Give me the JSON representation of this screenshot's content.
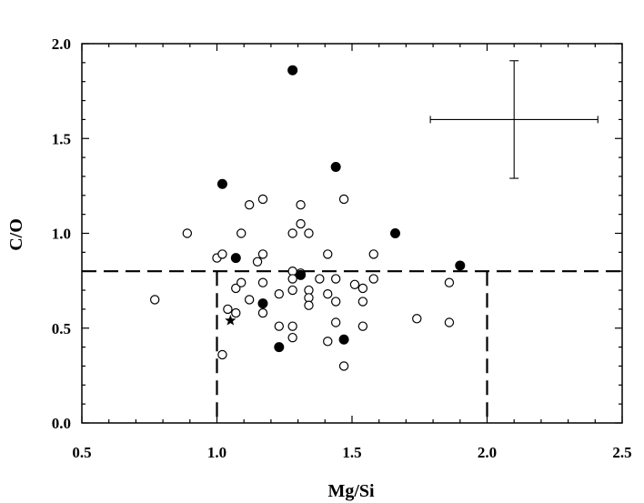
{
  "chart_data": {
    "type": "scatter",
    "title": "",
    "xlabel": "Mg/Si",
    "ylabel": "C/O",
    "xlim": [
      0.5,
      2.5
    ],
    "ylim": [
      0.0,
      2.0
    ],
    "x_ticks": [
      "0.5",
      "1.0",
      "1.5",
      "2.0",
      "2.5"
    ],
    "y_ticks": [
      "0.0",
      "0.5",
      "1.0",
      "1.5",
      "2.0"
    ],
    "grid": false,
    "colors": {
      "ink": "#000000",
      "open_fill": "#ffffff",
      "filled": "#000000"
    },
    "series": [
      {
        "marker": "open-circle",
        "points": [
          [
            0.77,
            0.65
          ],
          [
            0.89,
            1.0
          ],
          [
            1.0,
            0.87
          ],
          [
            1.02,
            0.89
          ],
          [
            1.02,
            0.36
          ],
          [
            1.04,
            0.6
          ],
          [
            1.07,
            0.71
          ],
          [
            1.07,
            0.58
          ],
          [
            1.09,
            0.74
          ],
          [
            1.09,
            1.0
          ],
          [
            1.12,
            1.15
          ],
          [
            1.12,
            0.65
          ],
          [
            1.15,
            0.85
          ],
          [
            1.17,
            1.18
          ],
          [
            1.17,
            0.89
          ],
          [
            1.17,
            0.74
          ],
          [
            1.17,
            0.58
          ],
          [
            1.23,
            0.68
          ],
          [
            1.23,
            0.51
          ],
          [
            1.28,
            1.0
          ],
          [
            1.28,
            0.8
          ],
          [
            1.28,
            0.76
          ],
          [
            1.28,
            0.7
          ],
          [
            1.28,
            0.51
          ],
          [
            1.28,
            0.45
          ],
          [
            1.31,
            1.15
          ],
          [
            1.31,
            1.05
          ],
          [
            1.31,
            0.79
          ],
          [
            1.34,
            1.0
          ],
          [
            1.34,
            0.7
          ],
          [
            1.34,
            0.66
          ],
          [
            1.34,
            0.62
          ],
          [
            1.38,
            0.76
          ],
          [
            1.41,
            0.89
          ],
          [
            1.41,
            0.68
          ],
          [
            1.41,
            0.43
          ],
          [
            1.44,
            0.76
          ],
          [
            1.44,
            0.64
          ],
          [
            1.44,
            0.53
          ],
          [
            1.47,
            1.18
          ],
          [
            1.47,
            0.3
          ],
          [
            1.51,
            0.73
          ],
          [
            1.54,
            0.71
          ],
          [
            1.54,
            0.64
          ],
          [
            1.54,
            0.51
          ],
          [
            1.58,
            0.89
          ],
          [
            1.58,
            0.76
          ],
          [
            1.74,
            0.55
          ],
          [
            1.86,
            0.74
          ],
          [
            1.86,
            0.53
          ]
        ]
      },
      {
        "marker": "filled-circle",
        "points": [
          [
            1.28,
            1.86
          ],
          [
            1.44,
            1.35
          ],
          [
            1.02,
            1.26
          ],
          [
            1.66,
            1.0
          ],
          [
            1.07,
            0.87
          ],
          [
            1.9,
            0.83
          ],
          [
            1.31,
            0.78
          ],
          [
            1.17,
            0.63
          ],
          [
            1.47,
            0.44
          ],
          [
            1.23,
            0.4
          ]
        ]
      },
      {
        "marker": "star",
        "points": [
          [
            1.05,
            0.54
          ]
        ]
      }
    ],
    "reference_lines": [
      {
        "orientation": "horizontal",
        "value": 0.8,
        "style": "dashed"
      },
      {
        "orientation": "vertical",
        "value": 1.0,
        "from": 0.0,
        "to": 0.8,
        "style": "dashed"
      },
      {
        "orientation": "vertical",
        "value": 2.0,
        "from": 0.0,
        "to": 0.8,
        "style": "dashed"
      }
    ],
    "error_bar": {
      "x": 2.1,
      "y": 1.6,
      "xerr": 0.31,
      "yerr": 0.31
    }
  }
}
